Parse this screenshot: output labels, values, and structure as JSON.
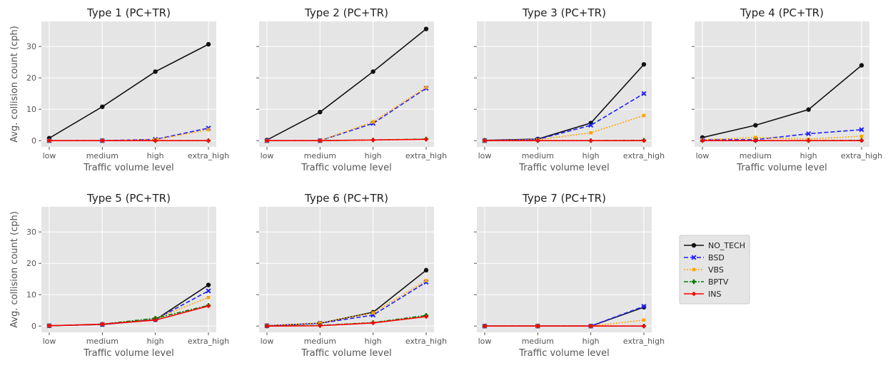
{
  "chart_data": {
    "type": "line",
    "categories": [
      "low",
      "medium",
      "high",
      "extra_high"
    ],
    "xlabel": "Traffic volume level",
    "ylabel": "Avg. collision count (cph)",
    "ylim": [
      -2,
      38
    ],
    "yticks": [
      0,
      10,
      20,
      30
    ],
    "grid": true,
    "legend": {
      "placement": "right",
      "entries": [
        {
          "name": "NO_TECH",
          "color": "#111111",
          "marker": "circle",
          "dash": "solid"
        },
        {
          "name": "BSD",
          "color": "#1f1fff",
          "marker": "x",
          "dash": "dashed"
        },
        {
          "name": "VBS",
          "color": "#ffa500",
          "marker": "square",
          "dash": "dotted"
        },
        {
          "name": "BPTV",
          "color": "#008000",
          "marker": "plus",
          "dash": "dashdot"
        },
        {
          "name": "INS",
          "color": "#ff0000",
          "marker": "diamond",
          "dash": "solid"
        }
      ]
    },
    "panels": [
      {
        "title": "Type 1 (PC+TR)",
        "series": [
          {
            "name": "NO_TECH",
            "values": [
              0.8,
              10.8,
              22.0,
              30.7
            ]
          },
          {
            "name": "BSD",
            "values": [
              0.0,
              0.0,
              0.4,
              4.0
            ]
          },
          {
            "name": "VBS",
            "values": [
              0.0,
              0.0,
              0.3,
              3.5
            ]
          },
          {
            "name": "BPTV",
            "values": [
              0.0,
              0.0,
              0.0,
              0.0
            ]
          },
          {
            "name": "INS",
            "values": [
              0.0,
              0.0,
              0.0,
              0.0
            ]
          }
        ]
      },
      {
        "title": "Type 2 (PC+TR)",
        "series": [
          {
            "name": "NO_TECH",
            "values": [
              0.2,
              9.1,
              22.0,
              35.6
            ]
          },
          {
            "name": "BSD",
            "values": [
              0.0,
              0.0,
              5.5,
              16.7
            ]
          },
          {
            "name": "VBS",
            "values": [
              0.0,
              0.0,
              6.0,
              17.0
            ]
          },
          {
            "name": "BPTV",
            "values": [
              0.0,
              0.0,
              0.2,
              0.5
            ]
          },
          {
            "name": "INS",
            "values": [
              0.0,
              0.0,
              0.2,
              0.4
            ]
          }
        ]
      },
      {
        "title": "Type 3 (PC+TR)",
        "series": [
          {
            "name": "NO_TECH",
            "values": [
              0.1,
              0.5,
              5.6,
              24.3
            ]
          },
          {
            "name": "BSD",
            "values": [
              0.0,
              0.4,
              4.9,
              15.0
            ]
          },
          {
            "name": "VBS",
            "values": [
              0.0,
              0.3,
              2.5,
              8.0
            ]
          },
          {
            "name": "BPTV",
            "values": [
              0.0,
              0.0,
              0.0,
              0.1
            ]
          },
          {
            "name": "INS",
            "values": [
              0.0,
              0.0,
              0.0,
              0.0
            ]
          }
        ]
      },
      {
        "title": "Type 4 (PC+TR)",
        "series": [
          {
            "name": "NO_TECH",
            "values": [
              1.0,
              4.9,
              9.9,
              24.0
            ]
          },
          {
            "name": "BSD",
            "values": [
              0.3,
              0.3,
              2.2,
              3.5
            ]
          },
          {
            "name": "VBS",
            "values": [
              0.3,
              1.0,
              0.5,
              1.4
            ]
          },
          {
            "name": "BPTV",
            "values": [
              0.0,
              0.0,
              0.0,
              0.1
            ]
          },
          {
            "name": "INS",
            "values": [
              0.0,
              0.0,
              0.0,
              0.0
            ]
          }
        ]
      },
      {
        "title": "Type 5 (PC+TR)",
        "series": [
          {
            "name": "NO_TECH",
            "values": [
              0.1,
              0.5,
              2.0,
              13.1
            ]
          },
          {
            "name": "BSD",
            "values": [
              0.1,
              0.5,
              2.1,
              11.2
            ]
          },
          {
            "name": "VBS",
            "values": [
              0.1,
              0.6,
              2.4,
              9.1
            ]
          },
          {
            "name": "BPTV",
            "values": [
              0.1,
              0.6,
              2.5,
              6.6
            ]
          },
          {
            "name": "INS",
            "values": [
              0.1,
              0.6,
              1.9,
              6.4
            ]
          }
        ]
      },
      {
        "title": "Type 6 (PC+TR)",
        "series": [
          {
            "name": "NO_TECH",
            "values": [
              0.1,
              0.9,
              4.4,
              17.8
            ]
          },
          {
            "name": "BSD",
            "values": [
              0.1,
              0.9,
              3.5,
              14.0
            ]
          },
          {
            "name": "VBS",
            "values": [
              0.1,
              1.0,
              4.2,
              14.5
            ]
          },
          {
            "name": "BPTV",
            "values": [
              0.0,
              0.2,
              1.1,
              3.4
            ]
          },
          {
            "name": "INS",
            "values": [
              0.0,
              0.1,
              1.0,
              3.0
            ]
          }
        ]
      },
      {
        "title": "Type 7 (PC+TR)",
        "series": [
          {
            "name": "NO_TECH",
            "values": [
              0.0,
              0.0,
              0.0,
              6.0
            ]
          },
          {
            "name": "BSD",
            "values": [
              0.0,
              0.0,
              0.0,
              6.3
            ]
          },
          {
            "name": "VBS",
            "values": [
              0.0,
              0.0,
              0.0,
              1.9
            ]
          },
          {
            "name": "BPTV",
            "values": [
              0.0,
              0.0,
              0.0,
              0.0
            ]
          },
          {
            "name": "INS",
            "values": [
              0.0,
              0.0,
              0.0,
              0.0
            ]
          }
        ]
      }
    ]
  }
}
